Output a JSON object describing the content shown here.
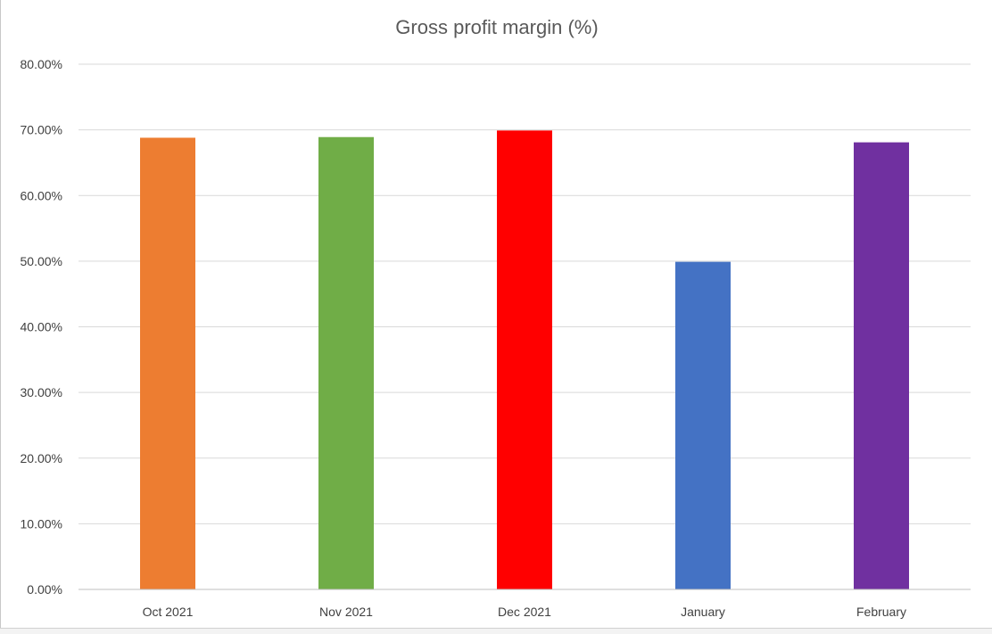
{
  "chart_data": {
    "type": "bar",
    "title": "Gross profit margin (%)",
    "xlabel": "",
    "ylabel": "",
    "categories": [
      "Oct 2021",
      "Nov 2021",
      "Dec 2021",
      "January",
      "February"
    ],
    "values": [
      0.688,
      0.689,
      0.699,
      0.499,
      0.681
    ],
    "colors": [
      "#ED7D31",
      "#70AD47",
      "#FF0000",
      "#4472C4",
      "#7030A0"
    ],
    "ylim": [
      0,
      0.8
    ],
    "yticks": [
      0,
      0.1,
      0.2,
      0.3,
      0.4,
      0.5,
      0.6,
      0.7,
      0.8
    ],
    "ytick_labels": [
      "0.00%",
      "10.00%",
      "20.00%",
      "30.00%",
      "40.00%",
      "50.00%",
      "60.00%",
      "70.00%",
      "80.00%"
    ],
    "grid": true,
    "gridline_color": "#d9d9d9",
    "legend": "none"
  }
}
